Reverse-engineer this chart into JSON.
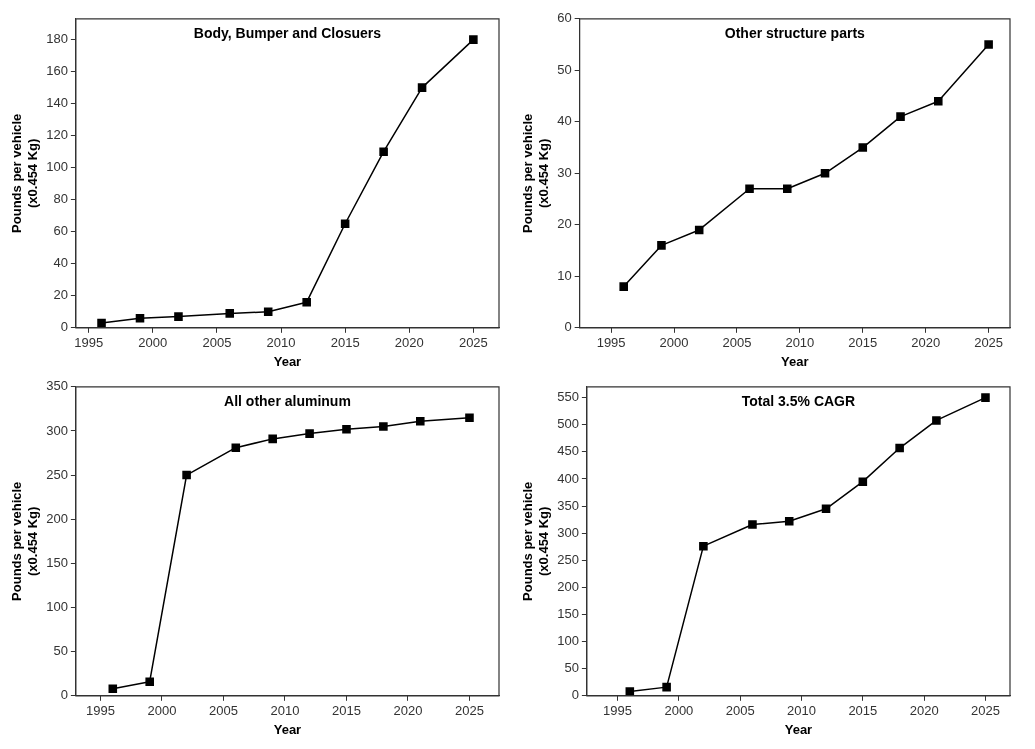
{
  "chart_data": [
    {
      "type": "line",
      "title": "Body, Bumper and Closuers",
      "xlabel": "Year",
      "ylabel": "Pounds per vehicle\n(x0.454 Kg)",
      "marker": "square",
      "line_style": "solid",
      "grid": false,
      "legend": false,
      "x": [
        1996,
        1999,
        2002,
        2006,
        2009,
        2012,
        2015,
        2018,
        2021,
        2025
      ],
      "series": [
        {
          "color": "#000000",
          "values": [
            3,
            6,
            7,
            9,
            10,
            16,
            65,
            110,
            150,
            180
          ]
        }
      ],
      "xlim": [
        1994,
        2027
      ],
      "xticks": [
        1995,
        2000,
        2005,
        2010,
        2015,
        2020,
        2025
      ],
      "ylim": [
        0,
        193
      ],
      "yticks": [
        0,
        20,
        40,
        60,
        80,
        100,
        120,
        140,
        160,
        180
      ]
    },
    {
      "type": "line",
      "title": "Other structure parts",
      "xlabel": "Year",
      "ylabel": "Pounds per vehicle\n(x0.454 Kg)",
      "marker": "square",
      "line_style": "solid",
      "grid": false,
      "legend": false,
      "x": [
        1996,
        1999,
        2002,
        2006,
        2009,
        2012,
        2015,
        2018,
        2021,
        2025
      ],
      "series": [
        {
          "color": "#000000",
          "values": [
            8,
            16,
            19,
            27,
            27,
            30,
            35,
            41,
            44,
            55
          ]
        }
      ],
      "xlim": [
        1992.5,
        2026.7
      ],
      "xticks": [
        1995,
        2000,
        2005,
        2010,
        2015,
        2020,
        2025
      ],
      "ylim": [
        0,
        60
      ],
      "yticks": [
        0,
        10,
        20,
        30,
        40,
        50,
        60
      ]
    },
    {
      "type": "line",
      "title": "All other aluminum",
      "xlabel": "Year",
      "ylabel": "Pounds per vehicle\n(x0.454 Kg)",
      "marker": "square",
      "line_style": "solid",
      "grid": false,
      "legend": false,
      "x": [
        1996,
        1999,
        2002,
        2006,
        2009,
        2012,
        2015,
        2018,
        2021,
        2025
      ],
      "series": [
        {
          "color": "#000000",
          "values": [
            8,
            16,
            250,
            281,
            291,
            297,
            302,
            305,
            311,
            315
          ]
        }
      ],
      "xlim": [
        1993,
        2027.4
      ],
      "xticks": [
        1995,
        2000,
        2005,
        2010,
        2015,
        2020,
        2025
      ],
      "ylim": [
        0,
        350
      ],
      "yticks": [
        0,
        50,
        100,
        150,
        200,
        250,
        300,
        350
      ]
    },
    {
      "type": "line",
      "title": "Total 3.5% CAGR",
      "xlabel": "Year",
      "ylabel": "Pounds per vehicle\n(x0.454 Kg)",
      "marker": "square",
      "line_style": "solid",
      "grid": false,
      "legend": false,
      "x": [
        1996,
        1999,
        2002,
        2006,
        2009,
        2012,
        2015,
        2018,
        2021,
        2025
      ],
      "series": [
        {
          "color": "#000000",
          "values": [
            8,
            16,
            276,
            316,
            322,
            345,
            395,
            457,
            508,
            550
          ]
        }
      ],
      "xlim": [
        1992.5,
        2027
      ],
      "xticks": [
        1995,
        2000,
        2005,
        2010,
        2015,
        2020,
        2025
      ],
      "ylim": [
        0,
        570
      ],
      "yticks": [
        0,
        50,
        100,
        150,
        200,
        250,
        300,
        350,
        400,
        450,
        500,
        550
      ]
    }
  ]
}
